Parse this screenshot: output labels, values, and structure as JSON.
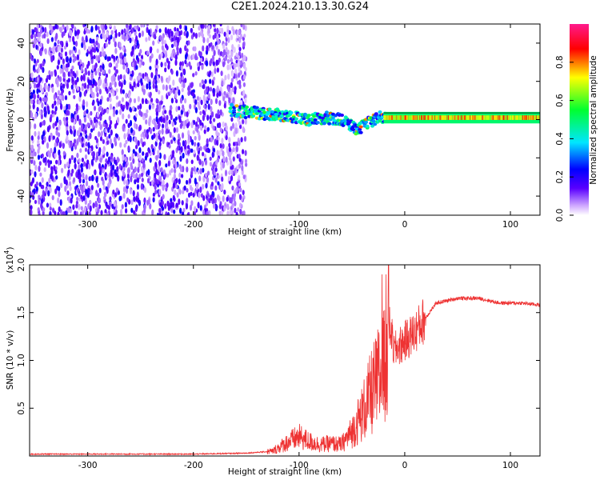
{
  "title": "C2E1.2024.210.13.30.G24",
  "colors": {
    "snr_line": "#ee3333",
    "frame": "#000000",
    "low_freq_cloud": "#5a00ff"
  },
  "chart_data": [
    {
      "type": "heatmap",
      "xlabel": "Height of straight line (km)",
      "ylabel": "Frequency (Hz)",
      "xlim": [
        -355,
        128
      ],
      "ylim": [
        -50,
        50
      ],
      "xticks": [
        -300,
        -200,
        -100,
        0,
        100
      ],
      "yticks": [
        -40,
        -20,
        0,
        20,
        40
      ],
      "colorbar": {
        "label": "Normalized spectral amplitude",
        "range": [
          0.0,
          1.0
        ],
        "ticks": [
          "0.0",
          "0.2",
          "0.4",
          "0.6",
          "0.8"
        ],
        "colormap": "white-purple-blue-cyan-green-yellow-red-magenta"
      },
      "regions": [
        {
          "x_range": [
            -355,
            -150
          ],
          "y_range": [
            -50,
            50
          ],
          "amplitude": 0.1
        },
        {
          "x_range": [
            -165,
            -20
          ],
          "y_center_start": 5,
          "y_center_end": -5,
          "amplitude": 0.35
        },
        {
          "x_range": [
            -20,
            128
          ],
          "y_center": 1,
          "amplitude": 0.6
        }
      ],
      "ridge": {
        "x": [
          -165,
          -150,
          -130,
          -110,
          -90,
          -75,
          -60,
          -45,
          -35,
          -25,
          -15,
          0,
          20,
          40,
          60,
          80,
          100,
          120,
          128
        ],
        "y": [
          5,
          4,
          3,
          2,
          0,
          1,
          0,
          -5,
          -2,
          1,
          1,
          1,
          1,
          1,
          1,
          1,
          1,
          1,
          1
        ]
      }
    },
    {
      "type": "line",
      "xlabel": "Height of straight line (km)",
      "ylabel": "SNR (10 * v/v)",
      "scale_label": "(x10",
      "scale_exponent": "4",
      "xlim": [
        -355,
        128
      ],
      "ylim": [
        0,
        2.0
      ],
      "xticks": [
        -300,
        -200,
        -100,
        0,
        100
      ],
      "yticks": [
        "0.5",
        "1.0",
        "1.5",
        "2.0"
      ],
      "series": [
        {
          "values_unit": "x10^4",
          "x": [
            -355,
            -300,
            -200,
            -150,
            -125,
            -110,
            -100,
            -90,
            -80,
            -70,
            -60,
            -50,
            -40,
            -30,
            -20,
            -15,
            -10,
            0,
            10,
            20,
            30,
            50,
            70,
            90,
            110,
            128
          ],
          "y": [
            0.02,
            0.02,
            0.02,
            0.03,
            0.05,
            0.15,
            0.2,
            0.15,
            0.12,
            0.13,
            0.12,
            0.25,
            0.45,
            0.7,
            0.9,
            1.4,
            1.1,
            1.2,
            1.3,
            1.45,
            1.6,
            1.65,
            1.65,
            1.6,
            1.6,
            1.58
          ]
        }
      ]
    }
  ]
}
